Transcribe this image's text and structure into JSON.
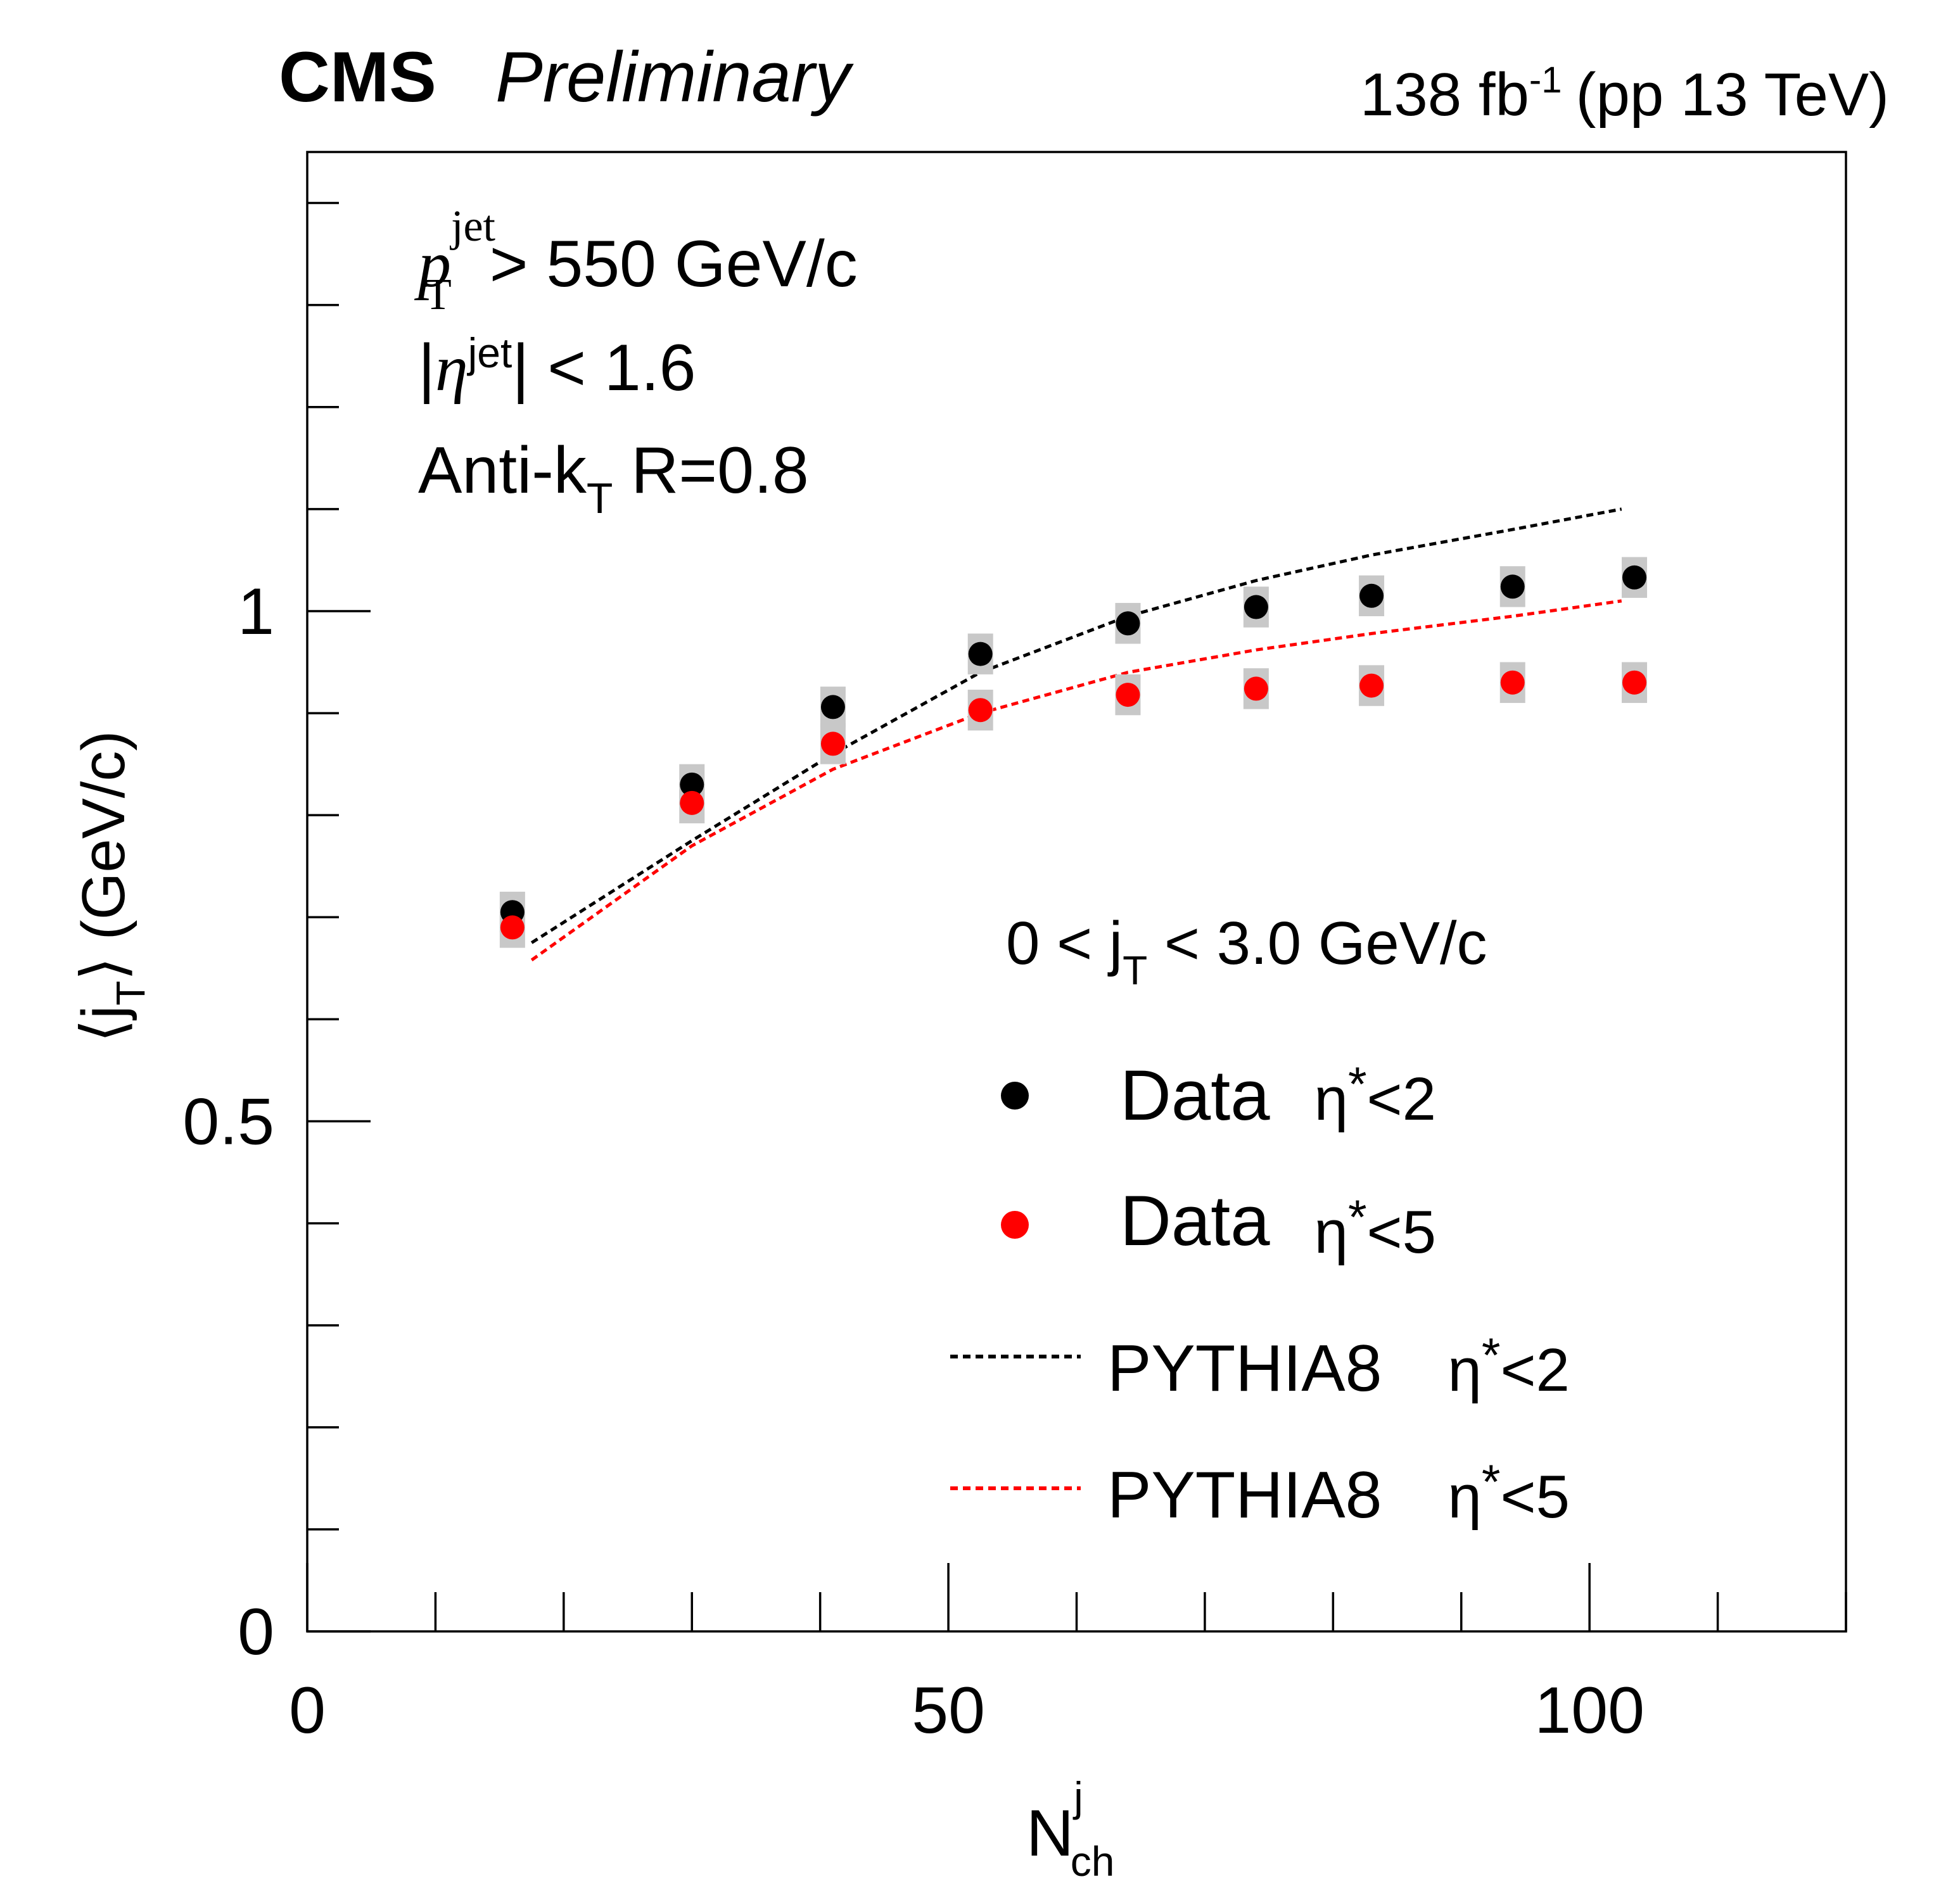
{
  "header": {
    "experiment": "CMS",
    "status": "Preliminary",
    "lumi_value": "138 fb",
    "lumi_exp": "-1",
    "lumi_energy": "(pp 13 TeV)"
  },
  "cuts": {
    "pt_sym": "p",
    "pt_sub": "T",
    "pt_sup": "jet",
    "pt_rest": "> 550 GeV/c",
    "eta_bar_left": "|",
    "eta_sym": "η",
    "eta_sup": "jet",
    "eta_rest": "| < 1.6",
    "algo_main": "Anti-k",
    "algo_sub": "T",
    "algo_rest": " R=0.8"
  },
  "legend": {
    "header_main": "0 < j",
    "header_sub": "T",
    "header_rest": " < 3.0 GeV/c",
    "entries": [
      {
        "label": "Data",
        "eta": "η",
        "star": "*",
        "cut": "<2"
      },
      {
        "label": "Data",
        "eta": "η",
        "star": "*",
        "cut": "<5"
      },
      {
        "label": "PYTHIA8",
        "eta": "η",
        "star": "*",
        "cut": "<2"
      },
      {
        "label": "PYTHIA8",
        "eta": "η",
        "star": "*",
        "cut": "<5"
      }
    ]
  },
  "axes": {
    "y_open": "⟨",
    "y_j": "j",
    "y_sub": "T",
    "y_close": "⟩",
    "y_units": " (GeV/c)",
    "x_main": "N",
    "x_sup": "j",
    "x_sub": "ch"
  },
  "colors": {
    "eta2": "#000000",
    "eta5": "#ff0000",
    "syst": "#c8c8c8"
  },
  "chart_data": {
    "type": "scatter",
    "xlim": [
      0,
      120
    ],
    "ylim": [
      0,
      1.45
    ],
    "x_ticks": [
      0,
      50,
      100
    ],
    "x_tick_labels": [
      "0",
      "50",
      "100"
    ],
    "y_ticks": [
      0,
      0.5,
      1
    ],
    "y_tick_labels": [
      "0",
      "0.5",
      "1"
    ],
    "x_minor_step": 10,
    "y_minor_step": 0.1,
    "series": [
      {
        "name": "Data η*<2",
        "kind": "markers",
        "color": "#000000",
        "x": [
          16,
          30,
          41,
          52.5,
          64,
          74,
          83,
          94,
          103.5
        ],
        "y": [
          0.705,
          0.83,
          0.906,
          0.958,
          0.988,
          1.004,
          1.015,
          1.024,
          1.033
        ],
        "syst": [
          0.02,
          0.02,
          0.02,
          0.02,
          0.02,
          0.02,
          0.02,
          0.02,
          0.02
        ]
      },
      {
        "name": "Data η*<5",
        "kind": "markers",
        "color": "#ff0000",
        "x": [
          16,
          30,
          41,
          52.5,
          64,
          74,
          83,
          94,
          103.5
        ],
        "y": [
          0.69,
          0.812,
          0.87,
          0.903,
          0.918,
          0.924,
          0.927,
          0.93,
          0.93
        ],
        "syst": [
          0.02,
          0.02,
          0.02,
          0.02,
          0.02,
          0.02,
          0.02,
          0.02,
          0.02
        ]
      },
      {
        "name": "PYTHIA8 η*<2",
        "kind": "dashed",
        "color": "#000000",
        "x": [
          17.5,
          30,
          41,
          52.5,
          64,
          74,
          83,
          94,
          102.5
        ],
        "y": [
          0.675,
          0.775,
          0.86,
          0.94,
          0.995,
          1.03,
          1.055,
          1.08,
          1.1
        ]
      },
      {
        "name": "PYTHIA8 η*<5",
        "kind": "dashed",
        "color": "#ff0000",
        "x": [
          17.5,
          30,
          41,
          52.5,
          64,
          74,
          83,
          94,
          102.5
        ],
        "y": [
          0.658,
          0.77,
          0.845,
          0.9,
          0.94,
          0.962,
          0.978,
          0.995,
          1.01
        ]
      }
    ]
  }
}
